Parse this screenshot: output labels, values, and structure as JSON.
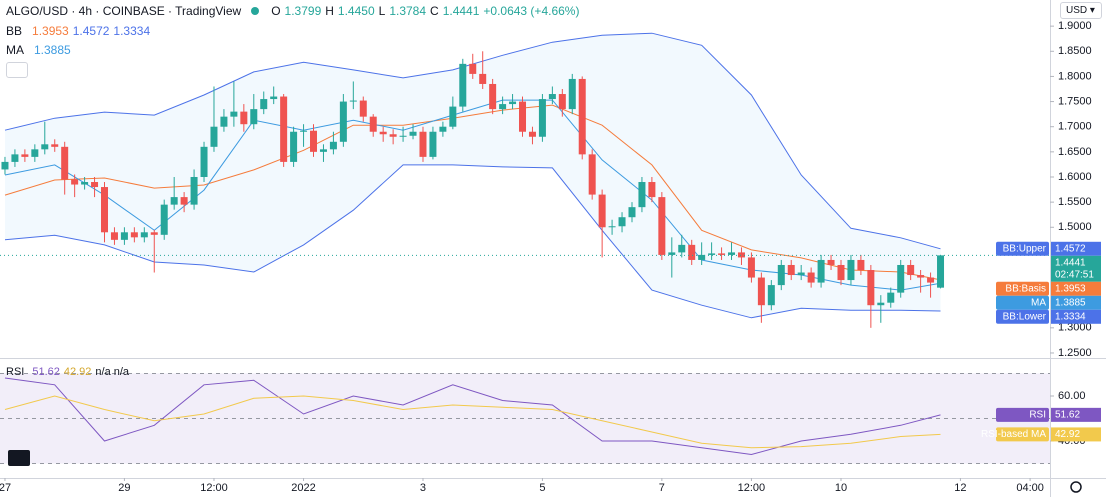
{
  "chart_data": {
    "type": "candlestick",
    "symbol": "ALGO/USD · 4h · COINBASE · TradingView",
    "ohlc_labels": [
      "O",
      "H",
      "L",
      "C"
    ],
    "ohlc_values": [
      "1.3799",
      "1.4450",
      "1.3784",
      "1.4441"
    ],
    "change": "+0.0643 (+4.66%)",
    "bb_label": "BB",
    "currency": "USD",
    "colors": {
      "up": "#26a69a",
      "down": "#ef5350"
    },
    "last_price": 1.4441,
    "countdown": "02:47:51",
    "xlim": [
      -0.5,
      105
    ],
    "ylim": [
      1.24,
      1.952
    ],
    "yticks": [
      {
        "value": 1.9,
        "label": "1.9000"
      },
      {
        "value": 1.85,
        "label": "1.8500"
      },
      {
        "value": 1.8,
        "label": "1.8000"
      },
      {
        "value": 1.75,
        "label": "1.7500"
      },
      {
        "value": 1.7,
        "label": "1.7000"
      },
      {
        "value": 1.65,
        "label": "1.6500"
      },
      {
        "value": 1.6,
        "label": "1.6000"
      },
      {
        "value": 1.55,
        "label": "1.5500"
      },
      {
        "value": 1.5,
        "label": "1.5000"
      },
      {
        "value": 1.3,
        "label": "1.3000"
      },
      {
        "value": 1.25,
        "label": "1.2500"
      }
    ],
    "xticks": [
      {
        "value": 0,
        "label": "27"
      },
      {
        "value": 12,
        "label": "29"
      },
      {
        "value": 21,
        "label": "12:00"
      },
      {
        "value": 30,
        "label": "2022"
      },
      {
        "value": 42,
        "label": "3"
      },
      {
        "value": 54,
        "label": "5"
      },
      {
        "value": 66,
        "label": "7"
      },
      {
        "value": 75,
        "label": "12:00"
      },
      {
        "value": 84,
        "label": "10"
      },
      {
        "value": 96,
        "label": "12"
      },
      {
        "value": 103,
        "label": "04:00"
      }
    ],
    "x": [
      0,
      1,
      2,
      3,
      4,
      5,
      6,
      7,
      8,
      9,
      10,
      11,
      12,
      13,
      14,
      15,
      16,
      17,
      18,
      19,
      20,
      21,
      22,
      23,
      24,
      25,
      26,
      27,
      28,
      29,
      30,
      31,
      32,
      33,
      34,
      35,
      36,
      37,
      38,
      39,
      40,
      41,
      42,
      43,
      44,
      45,
      46,
      47,
      48,
      49,
      50,
      51,
      52,
      53,
      54,
      55,
      56,
      57,
      58,
      59,
      60,
      61,
      62,
      63,
      64,
      65,
      66,
      67,
      68,
      69,
      70,
      71,
      72,
      73,
      74,
      75,
      76,
      77,
      78,
      79,
      80,
      81,
      82,
      83,
      84,
      85,
      86,
      87,
      88,
      89,
      90,
      91,
      92,
      93,
      94
    ],
    "ohlc": [
      [
        1.615,
        1.64,
        1.605,
        1.63
      ],
      [
        1.63,
        1.655,
        1.62,
        1.645
      ],
      [
        1.645,
        1.655,
        1.63,
        1.64
      ],
      [
        1.64,
        1.665,
        1.63,
        1.655
      ],
      [
        1.655,
        1.71,
        1.645,
        1.665
      ],
      [
        1.665,
        1.675,
        1.65,
        1.66
      ],
      [
        1.66,
        1.67,
        1.565,
        1.595
      ],
      [
        1.595,
        1.605,
        1.56,
        1.585
      ],
      [
        1.585,
        1.6,
        1.575,
        1.59
      ],
      [
        1.59,
        1.6,
        1.56,
        1.58
      ],
      [
        1.58,
        1.59,
        1.47,
        1.49
      ],
      [
        1.49,
        1.5,
        1.465,
        1.475
      ],
      [
        1.475,
        1.5,
        1.465,
        1.49
      ],
      [
        1.49,
        1.5,
        1.47,
        1.48
      ],
      [
        1.48,
        1.5,
        1.47,
        1.49
      ],
      [
        1.49,
        1.495,
        1.41,
        1.485
      ],
      [
        1.485,
        1.555,
        1.475,
        1.545
      ],
      [
        1.545,
        1.6,
        1.535,
        1.56
      ],
      [
        1.56,
        1.57,
        1.53,
        1.545
      ],
      [
        1.545,
        1.615,
        1.535,
        1.6
      ],
      [
        1.6,
        1.67,
        1.59,
        1.66
      ],
      [
        1.66,
        1.78,
        1.65,
        1.7
      ],
      [
        1.7,
        1.735,
        1.69,
        1.72
      ],
      [
        1.72,
        1.79,
        1.7,
        1.73
      ],
      [
        1.73,
        1.745,
        1.69,
        1.705
      ],
      [
        1.705,
        1.765,
        1.695,
        1.735
      ],
      [
        1.735,
        1.77,
        1.725,
        1.755
      ],
      [
        1.755,
        1.78,
        1.745,
        1.76
      ],
      [
        1.76,
        1.765,
        1.62,
        1.63
      ],
      [
        1.63,
        1.7,
        1.62,
        1.69
      ],
      [
        1.69,
        1.705,
        1.66,
        1.692
      ],
      [
        1.692,
        1.705,
        1.64,
        1.65
      ],
      [
        1.65,
        1.665,
        1.63,
        1.655
      ],
      [
        1.655,
        1.69,
        1.645,
        1.67
      ],
      [
        1.67,
        1.765,
        1.66,
        1.75
      ],
      [
        1.75,
        1.79,
        1.735,
        1.752
      ],
      [
        1.752,
        1.76,
        1.71,
        1.72
      ],
      [
        1.72,
        1.725,
        1.68,
        1.69
      ],
      [
        1.69,
        1.7,
        1.67,
        1.685
      ],
      [
        1.685,
        1.695,
        1.665,
        1.68
      ],
      [
        1.68,
        1.7,
        1.67,
        1.682
      ],
      [
        1.682,
        1.705,
        1.675,
        1.69
      ],
      [
        1.69,
        1.7,
        1.63,
        1.64
      ],
      [
        1.64,
        1.7,
        1.635,
        1.69
      ],
      [
        1.69,
        1.71,
        1.68,
        1.7
      ],
      [
        1.7,
        1.76,
        1.695,
        1.74
      ],
      [
        1.74,
        1.835,
        1.73,
        1.825
      ],
      [
        1.825,
        1.845,
        1.795,
        1.805
      ],
      [
        1.805,
        1.85,
        1.775,
        1.785
      ],
      [
        1.785,
        1.795,
        1.725,
        1.735
      ],
      [
        1.735,
        1.76,
        1.725,
        1.745
      ],
      [
        1.745,
        1.765,
        1.735,
        1.75
      ],
      [
        1.75,
        1.76,
        1.68,
        1.69
      ],
      [
        1.69,
        1.7,
        1.665,
        1.68
      ],
      [
        1.68,
        1.765,
        1.67,
        1.755
      ],
      [
        1.755,
        1.78,
        1.745,
        1.765
      ],
      [
        1.765,
        1.775,
        1.72,
        1.735
      ],
      [
        1.735,
        1.805,
        1.725,
        1.795
      ],
      [
        1.795,
        1.8,
        1.635,
        1.645
      ],
      [
        1.645,
        1.655,
        1.555,
        1.565
      ],
      [
        1.565,
        1.575,
        1.44,
        1.5
      ],
      [
        1.5,
        1.515,
        1.485,
        1.502
      ],
      [
        1.502,
        1.53,
        1.49,
        1.52
      ],
      [
        1.52,
        1.55,
        1.51,
        1.54
      ],
      [
        1.54,
        1.6,
        1.53,
        1.59
      ],
      [
        1.59,
        1.6,
        1.55,
        1.56
      ],
      [
        1.56,
        1.57,
        1.435,
        1.445
      ],
      [
        1.445,
        1.48,
        1.4,
        1.45
      ],
      [
        1.45,
        1.485,
        1.44,
        1.465
      ],
      [
        1.465,
        1.475,
        1.425,
        1.435
      ],
      [
        1.435,
        1.47,
        1.425,
        1.445
      ],
      [
        1.445,
        1.47,
        1.435,
        1.448
      ],
      [
        1.448,
        1.46,
        1.435,
        1.445
      ],
      [
        1.445,
        1.47,
        1.435,
        1.45
      ],
      [
        1.45,
        1.46,
        1.425,
        1.44
      ],
      [
        1.44,
        1.45,
        1.39,
        1.4
      ],
      [
        1.4,
        1.41,
        1.31,
        1.345
      ],
      [
        1.345,
        1.395,
        1.335,
        1.385
      ],
      [
        1.385,
        1.435,
        1.375,
        1.425
      ],
      [
        1.425,
        1.435,
        1.395,
        1.405
      ],
      [
        1.405,
        1.425,
        1.395,
        1.41
      ],
      [
        1.41,
        1.42,
        1.38,
        1.39
      ],
      [
        1.39,
        1.445,
        1.38,
        1.435
      ],
      [
        1.435,
        1.445,
        1.415,
        1.425
      ],
      [
        1.425,
        1.435,
        1.385,
        1.395
      ],
      [
        1.395,
        1.445,
        1.385,
        1.435
      ],
      [
        1.435,
        1.445,
        1.405,
        1.415
      ],
      [
        1.415,
        1.425,
        1.3,
        1.345
      ],
      [
        1.345,
        1.365,
        1.31,
        1.35
      ],
      [
        1.35,
        1.38,
        1.34,
        1.37
      ],
      [
        1.37,
        1.435,
        1.36,
        1.425
      ],
      [
        1.425,
        1.435,
        1.395,
        1.405
      ],
      [
        1.405,
        1.415,
        1.37,
        1.4
      ],
      [
        1.4,
        1.41,
        1.36,
        1.39
      ],
      [
        1.3799,
        1.445,
        1.3784,
        1.4441
      ]
    ],
    "indicators": [
      {
        "name": "BB:Upper",
        "color": "#4c72e8",
        "x": [
          0,
          5,
          10,
          15,
          20,
          25,
          30,
          35,
          40,
          45,
          50,
          55,
          60,
          65,
          70,
          75,
          80,
          85,
          90,
          94
        ],
        "values": [
          1.693,
          1.717,
          1.729,
          1.723,
          1.763,
          1.809,
          1.828,
          1.813,
          1.797,
          1.813,
          1.842,
          1.868,
          1.882,
          1.886,
          1.862,
          1.763,
          1.604,
          1.498,
          1.479,
          1.4572
        ]
      },
      {
        "name": "BB:Basis",
        "color": "#f57c3c",
        "x": [
          0,
          5,
          10,
          15,
          20,
          25,
          30,
          35,
          40,
          45,
          50,
          55,
          60,
          65,
          70,
          75,
          80,
          85,
          90,
          94
        ],
        "values": [
          1.564,
          1.594,
          1.598,
          1.578,
          1.584,
          1.614,
          1.653,
          1.703,
          1.703,
          1.717,
          1.733,
          1.743,
          1.703,
          1.624,
          1.494,
          1.455,
          1.439,
          1.415,
          1.411,
          1.3953
        ]
      },
      {
        "name": "MA",
        "color": "#3d9be0",
        "x": [
          0,
          5,
          10,
          15,
          20,
          25,
          30,
          35,
          40,
          45,
          50,
          55,
          60,
          65,
          70,
          75,
          80,
          85,
          90,
          94
        ],
        "values": [
          1.604,
          1.624,
          1.564,
          1.494,
          1.574,
          1.713,
          1.693,
          1.713,
          1.693,
          1.723,
          1.753,
          1.753,
          1.634,
          1.554,
          1.435,
          1.415,
          1.405,
          1.385,
          1.375,
          1.3885
        ]
      },
      {
        "name": "BB:Lower",
        "color": "#4c72e8",
        "x": [
          0,
          5,
          10,
          15,
          20,
          25,
          30,
          35,
          40,
          45,
          50,
          55,
          60,
          65,
          70,
          75,
          80,
          85,
          90,
          94
        ],
        "values": [
          1.475,
          1.484,
          1.465,
          1.431,
          1.425,
          1.411,
          1.465,
          1.534,
          1.624,
          1.624,
          1.62,
          1.618,
          1.494,
          1.375,
          1.345,
          1.32,
          1.339,
          1.335,
          1.335,
          1.3334
        ]
      }
    ],
    "rsi": {
      "title": "RSI",
      "extra": "n/a n/a",
      "ylim": [
        24,
        76
      ],
      "yticks": [
        {
          "value": 60,
          "label": "60.00"
        },
        {
          "value": 40,
          "label": "40.00"
        }
      ],
      "levels": [
        70,
        50,
        30
      ],
      "series": [
        {
          "name": "RSI",
          "color": "#7e57c2",
          "x": [
            0,
            5,
            10,
            15,
            20,
            25,
            30,
            35,
            40,
            45,
            50,
            55,
            60,
            65,
            70,
            75,
            80,
            85,
            90,
            94
          ],
          "values": [
            68,
            65,
            40,
            47,
            65,
            67,
            52,
            60,
            56,
            65,
            58,
            56,
            40,
            40,
            37,
            34,
            40,
            43,
            47,
            51.62
          ]
        },
        {
          "name": "RSI-based MA",
          "color": "#f2c94c",
          "x": [
            0,
            5,
            10,
            15,
            20,
            25,
            30,
            35,
            40,
            45,
            50,
            55,
            60,
            65,
            70,
            75,
            80,
            85,
            90,
            94
          ],
          "values": [
            54,
            60,
            54,
            49,
            52,
            59,
            60,
            58,
            54,
            56,
            55,
            54,
            49,
            44,
            39,
            37,
            37.5,
            39,
            42,
            42.92
          ]
        }
      ]
    }
  }
}
